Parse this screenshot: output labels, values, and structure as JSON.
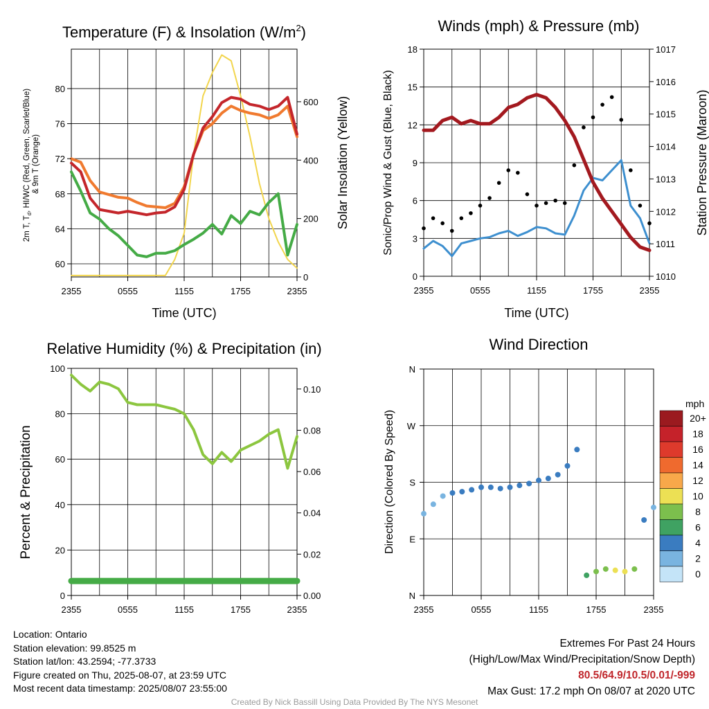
{
  "charts": [
    {
      "title": "Temperature (F) & Insolation (W/m",
      "title_sup": "2",
      "title_end": ")",
      "xlabel": "Time (UTC)",
      "ylabel_left_lines": [
        "2m T, T",
        "d",
        ", HI/WC (Red, Green, Scarlet/Blue)",
        "& 9m T (Orange)"
      ],
      "ylabel_right": "Solar Insolation (Yellow)",
      "x_ticks": [
        "2355",
        "0555",
        "1155",
        "1755",
        "2355"
      ],
      "y_ticks_left": [
        "60",
        "64",
        "68",
        "72",
        "76",
        "80"
      ],
      "y_ticks_right": [
        "0",
        "200",
        "400",
        "600"
      ]
    },
    {
      "title": "Winds (mph) & Pressure (mb)",
      "xlabel": "Time (UTC)",
      "ylabel_left": "Sonic/Prop Wind & Gust (Blue, Black)",
      "ylabel_right": "Station Pressure (Maroon)",
      "x_ticks": [
        "2355",
        "0555",
        "1155",
        "1755",
        "2355"
      ],
      "y_ticks_left": [
        "0",
        "3",
        "6",
        "9",
        "12",
        "15",
        "18"
      ],
      "y_ticks_right": [
        "1010",
        "1011",
        "1012",
        "1013",
        "1014",
        "1015",
        "1016",
        "1017"
      ]
    },
    {
      "title": "Relative Humidity (%) & Precipitation (in)",
      "ylabel_left": "Percent & Precipitation",
      "x_ticks": [
        "2355",
        "0555",
        "1155",
        "1755",
        "2355"
      ],
      "y_ticks_left": [
        "0",
        "20",
        "40",
        "60",
        "80",
        "100"
      ],
      "y_ticks_right": [
        "0.00",
        "0.02",
        "0.04",
        "0.06",
        "0.08",
        "0.10"
      ]
    },
    {
      "title": "Wind Direction",
      "ylabel_left": "Direction (Colored By Speed)",
      "x_ticks": [
        "2355",
        "0555",
        "1155",
        "1755",
        "2355"
      ],
      "y_ticks_left": [
        "N",
        "E",
        "S",
        "W",
        "N"
      ],
      "legend_title": "mph",
      "legend_labels": [
        "20+",
        "18",
        "16",
        "14",
        "12",
        "10",
        "8",
        "6",
        "4",
        "2",
        "0"
      ],
      "legend_colors": [
        "#9b1a1f",
        "#c5222a",
        "#de3a2c",
        "#ef6a2e",
        "#f8a84a",
        "#ece054",
        "#7cbf4d",
        "#3fa262",
        "#3a7cc0",
        "#79b4e0",
        "#c4e4f8"
      ]
    }
  ],
  "chart_data": [
    {
      "type": "line",
      "title": "Temperature (F) & Insolation (W/m2)",
      "x_hours": [
        0,
        1,
        2,
        3,
        4,
        5,
        6,
        7,
        8,
        9,
        10,
        11,
        12,
        13,
        14,
        15,
        16,
        17,
        18,
        19,
        20,
        21,
        22,
        23,
        24
      ],
      "ylim_left": [
        58.5,
        84.5
      ],
      "ylim_right": [
        0,
        780
      ],
      "series": [
        {
          "color": "#c4262b",
          "axis": "left",
          "values": [
            71.5,
            70.5,
            67.5,
            66.2,
            66.0,
            65.8,
            66.0,
            65.8,
            65.6,
            65.8,
            65.9,
            66.5,
            68.5,
            72.5,
            75.5,
            76.8,
            78.4,
            79.0,
            78.8,
            78.2,
            78.0,
            77.6,
            78.0,
            79.0,
            74.8
          ]
        },
        {
          "color": "#f07a2f",
          "axis": "left",
          "values": [
            72.0,
            71.6,
            69.5,
            68.2,
            67.9,
            67.6,
            67.5,
            67.0,
            66.6,
            66.5,
            66.4,
            66.9,
            68.8,
            72.5,
            75.2,
            76.0,
            77.2,
            78.0,
            77.5,
            77.2,
            77.0,
            76.6,
            77.0,
            78.0,
            74.5
          ]
        },
        {
          "color": "#45ab46",
          "axis": "left",
          "values": [
            70.5,
            68.3,
            65.8,
            65.1,
            64.0,
            63.2,
            62.1,
            61.0,
            60.8,
            61.2,
            61.2,
            61.5,
            62.2,
            62.8,
            63.5,
            64.5,
            63.4,
            65.5,
            64.6,
            66.0,
            65.6,
            67.0,
            68.0,
            61.0,
            64.5
          ]
        },
        {
          "color": "#f2d54c",
          "axis": "right",
          "values": [
            5,
            5,
            5,
            5,
            5,
            5,
            5,
            5,
            5,
            5,
            5,
            60,
            150,
            420,
            620,
            700,
            760,
            740,
            620,
            480,
            320,
            200,
            120,
            60,
            30
          ]
        }
      ]
    },
    {
      "type": "line",
      "title": "Winds (mph) & Pressure (mb)",
      "x_hours": [
        0,
        1,
        2,
        3,
        4,
        5,
        6,
        7,
        8,
        9,
        10,
        11,
        12,
        13,
        14,
        15,
        16,
        17,
        18,
        19,
        20,
        21,
        22,
        23,
        24
      ],
      "ylim_left": [
        0,
        18
      ],
      "ylim_right": [
        1010,
        1017
      ],
      "series": [
        {
          "color": "#3d8fcf",
          "axis": "left",
          "values": [
            2.2,
            2.8,
            2.4,
            1.6,
            2.6,
            2.8,
            3.0,
            3.1,
            3.4,
            3.6,
            3.2,
            3.5,
            3.9,
            3.8,
            3.4,
            3.3,
            4.8,
            6.8,
            7.8,
            7.6,
            8.4,
            9.2,
            5.6,
            4.6,
            2.6
          ]
        },
        {
          "color": "#000000",
          "axis": "left",
          "values": [
            3.8,
            4.6,
            4.2,
            3.6,
            4.6,
            5.0,
            5.6,
            6.2,
            7.4,
            8.4,
            8.2,
            6.5,
            5.6,
            5.8,
            6.0,
            5.8,
            8.8,
            11.8,
            12.6,
            13.6,
            14.2,
            12.4,
            8.4,
            5.6,
            4.2
          ]
        },
        {
          "color": "#a3191f",
          "axis": "right",
          "values": [
            1014.5,
            1014.5,
            1014.8,
            1014.9,
            1014.7,
            1014.8,
            1014.7,
            1014.7,
            1014.9,
            1015.2,
            1015.3,
            1015.5,
            1015.6,
            1015.5,
            1015.2,
            1014.8,
            1014.3,
            1013.6,
            1012.9,
            1012.4,
            1012.0,
            1011.6,
            1011.2,
            1010.9,
            1010.8
          ]
        }
      ]
    },
    {
      "type": "line",
      "title": "Relative Humidity (%) & Precipitation (in)",
      "x_hours": [
        0,
        1,
        2,
        3,
        4,
        5,
        6,
        7,
        8,
        9,
        10,
        11,
        12,
        13,
        14,
        15,
        16,
        17,
        18,
        19,
        20,
        21,
        22,
        23,
        24
      ],
      "ylim_left": [
        0,
        100
      ],
      "ylim_right": [
        0,
        0.11
      ],
      "series": [
        {
          "color": "#8cc63f",
          "axis": "left",
          "values": [
            97,
            93,
            90,
            94,
            93,
            91,
            85,
            84,
            84,
            84,
            83,
            82,
            80,
            73,
            62,
            58,
            63,
            59,
            64,
            66,
            68,
            71,
            73,
            56,
            70
          ]
        },
        {
          "color": "#45ab46",
          "axis": "right",
          "values": [
            0.007,
            0.007,
            0.007,
            0.007,
            0.007,
            0.007,
            0.007,
            0.007,
            0.007,
            0.007,
            0.007,
            0.007,
            0.007,
            0.007,
            0.007,
            0.007,
            0.007,
            0.007,
            0.007,
            0.007,
            0.007,
            0.007,
            0.007,
            0.007,
            0.007
          ]
        }
      ]
    },
    {
      "type": "scatter",
      "title": "Wind Direction",
      "x_hours": [
        0,
        1,
        2,
        3,
        4,
        5,
        6,
        7,
        8,
        9,
        10,
        11,
        12,
        13,
        14,
        15,
        16,
        17,
        18,
        19,
        20,
        21,
        22,
        23,
        24
      ],
      "direction_deg": [
        130,
        145,
        158,
        163,
        165,
        168,
        172,
        172,
        170,
        172,
        175,
        178,
        183,
        186,
        192,
        206,
        232,
        32,
        38,
        42,
        40,
        38,
        42,
        120,
        140
      ],
      "speed_mph": [
        2,
        2,
        2,
        3,
        3,
        3,
        3,
        3,
        3,
        4,
        4,
        4,
        4,
        4,
        4,
        4,
        4,
        6,
        7,
        8,
        9,
        9,
        8,
        3,
        2
      ],
      "ylim": [
        0,
        360
      ]
    }
  ],
  "info_left": [
    "Location: Ontario",
    "Station elevation: 99.8525 m",
    "Station lat/lon: 43.2594; -77.3733",
    "Figure created on Thu, 2025-08-07, at 23:59 UTC",
    "Most recent data timestamp: 2025/08/07 23:55:00"
  ],
  "info_right": {
    "line1": "Extremes For Past 24 Hours",
    "line2": "(High/Low/Max Wind/Precipitation/Snow Depth)",
    "extremes": "80.5/64.9/10.5/0.01/-999",
    "gust": "Max Gust: 17.2 mph On 08/07 at 2020 UTC"
  },
  "credit": "Created By Nick Bassill Using Data Provided By The NYS Mesonet"
}
